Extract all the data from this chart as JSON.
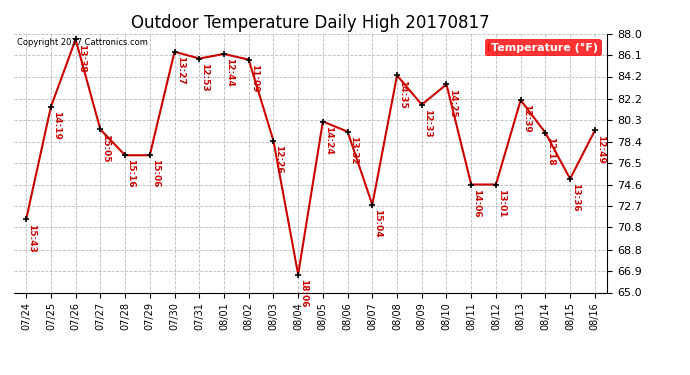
{
  "title": "Outdoor Temperature Daily High 20170817",
  "copyright": "Copyright 2017 Cattronics.com",
  "legend_label": "Temperature (°F)",
  "dates": [
    "07/24",
    "07/25",
    "07/26",
    "07/27",
    "07/28",
    "07/29",
    "07/30",
    "07/31",
    "08/01",
    "08/02",
    "08/03",
    "08/04",
    "08/05",
    "08/06",
    "08/07",
    "08/08",
    "08/09",
    "08/10",
    "08/11",
    "08/12",
    "08/13",
    "08/14",
    "08/15",
    "08/16"
  ],
  "temperatures": [
    71.5,
    81.5,
    87.5,
    79.5,
    77.2,
    77.2,
    86.4,
    85.8,
    86.2,
    85.7,
    78.5,
    66.6,
    80.2,
    79.3,
    72.8,
    84.3,
    81.7,
    83.5,
    74.6,
    74.6,
    82.1,
    79.2,
    75.1,
    79.4
  ],
  "times": [
    "15:43",
    "14:19",
    "13:38",
    "15:05",
    "15:16",
    "15:06",
    "13:27",
    "12:53",
    "12:44",
    "11:09",
    "12:26",
    "18:06",
    "14:24",
    "13:32",
    "15:04",
    "14:35",
    "12:33",
    "14:25",
    "14:06",
    "13:01",
    "12:39",
    "12:18",
    "13:36",
    "12:49"
  ],
  "ylim": [
    65.0,
    88.0
  ],
  "yticks": [
    65.0,
    66.9,
    68.8,
    70.8,
    72.7,
    74.6,
    76.5,
    78.4,
    80.3,
    82.2,
    84.2,
    86.1,
    88.0
  ],
  "line_color": "#CC0000",
  "dot_color": "#000000",
  "annotation_color": "#CC0000",
  "bg_color": "#FFFFFF",
  "grid_color": "#BBBBBB",
  "title_fontsize": 12,
  "annotation_fontsize": 6.5,
  "copyright_color": "#000000"
}
